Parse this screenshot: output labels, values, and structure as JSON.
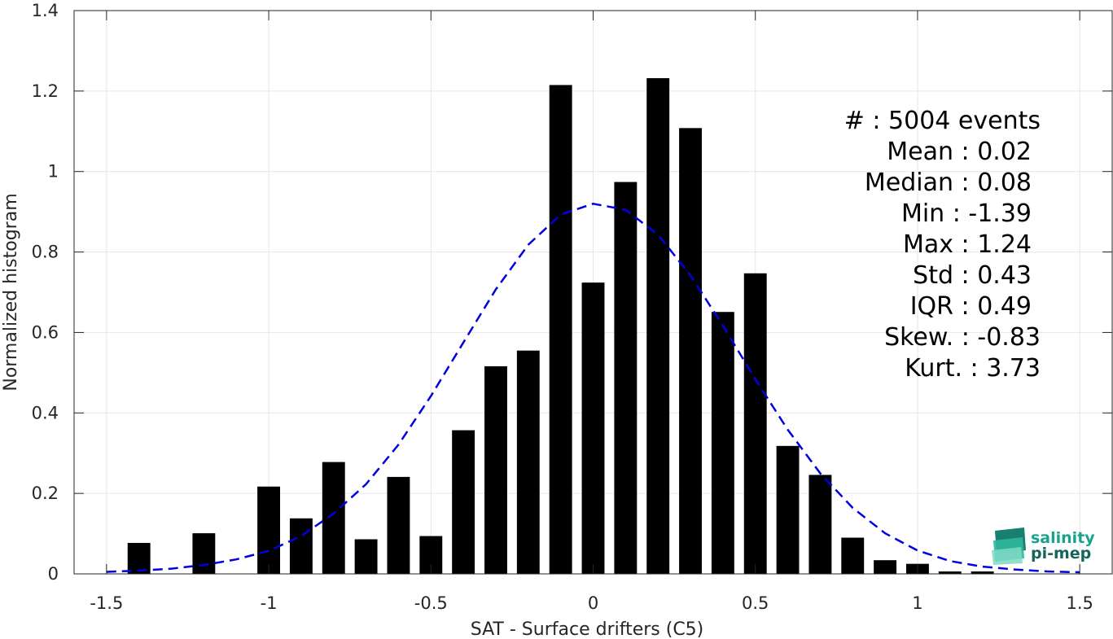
{
  "chart_data": {
    "type": "bar",
    "xlabel": "SAT - Surface drifters (C5)",
    "ylabel": "Normalized histogram",
    "xlim": [
      -1.6,
      1.6
    ],
    "ylim": [
      0,
      1.4
    ],
    "xticks": [
      -1.5,
      -1,
      -0.5,
      0,
      0.5,
      1,
      1.5
    ],
    "xtick_labels": [
      "-1.5",
      "-1",
      "-0.5",
      "0",
      "0.5",
      "1",
      "1.5"
    ],
    "yticks": [
      0,
      0.2,
      0.4,
      0.6,
      0.8,
      1,
      1.2,
      1.4
    ],
    "ytick_labels": [
      "0",
      "0.2",
      "0.4",
      "0.6",
      "0.8",
      "1",
      "1.2",
      "1.4"
    ],
    "grid": true,
    "bar_width": 0.07,
    "bars": {
      "color": "#000000",
      "x": [
        -1.4,
        -1.2,
        -1.0,
        -0.9,
        -0.8,
        -0.7,
        -0.6,
        -0.5,
        -0.4,
        -0.3,
        -0.2,
        -0.1,
        0.0,
        0.1,
        0.2,
        0.3,
        0.4,
        0.5,
        0.6,
        0.7,
        0.8,
        0.9,
        1.0,
        1.1,
        1.2
      ],
      "values": [
        0.077,
        0.101,
        0.217,
        0.138,
        0.278,
        0.086,
        0.241,
        0.094,
        0.357,
        0.516,
        0.555,
        1.215,
        0.724,
        0.974,
        1.232,
        1.108,
        0.651,
        0.747,
        0.318,
        0.246,
        0.09,
        0.034,
        0.025,
        0.006,
        0.006
      ]
    },
    "fit_curve": {
      "style": "dashed",
      "color": "#0000e0",
      "x": [
        -1.5,
        -1.4,
        -1.3,
        -1.2,
        -1.1,
        -1.0,
        -0.9,
        -0.8,
        -0.7,
        -0.6,
        -0.5,
        -0.4,
        -0.3,
        -0.2,
        -0.1,
        0.0,
        0.1,
        0.2,
        0.3,
        0.4,
        0.5,
        0.6,
        0.7,
        0.8,
        0.9,
        1.0,
        1.1,
        1.2,
        1.3,
        1.4,
        1.5
      ],
      "values": [
        0.005,
        0.008,
        0.013,
        0.022,
        0.036,
        0.057,
        0.094,
        0.15,
        0.223,
        0.321,
        0.442,
        0.575,
        0.707,
        0.818,
        0.893,
        0.92,
        0.905,
        0.843,
        0.742,
        0.617,
        0.484,
        0.358,
        0.25,
        0.164,
        0.101,
        0.058,
        0.032,
        0.018,
        0.011,
        0.006,
        0.004
      ]
    },
    "annotations": [
      {
        "text": "#  : 5004 events"
      },
      {
        "text": "Mean : 0.02"
      },
      {
        "text": "Median : 0.08"
      },
      {
        "text": "Min : -1.39"
      },
      {
        "text": "Max : 1.24"
      },
      {
        "text": "Std : 0.43"
      },
      {
        "text": "IQR : 0.49"
      },
      {
        "text": "Skew. : -0.83"
      },
      {
        "text": "Kurt. : 3.73"
      }
    ]
  },
  "logo": {
    "line1": "salinity",
    "line2": "pi-mep",
    "color": "#1aa38c"
  }
}
